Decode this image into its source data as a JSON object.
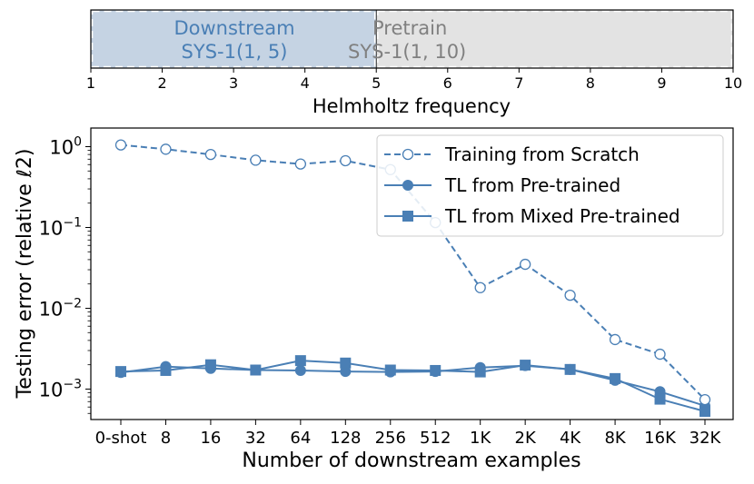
{
  "chart_data": [
    {
      "type": "range_bar",
      "xlabel": "Helmholtz frequency",
      "xlim": [
        1,
        10
      ],
      "xticks": [
        1,
        2,
        3,
        4,
        5,
        6,
        7,
        8,
        9,
        10
      ],
      "bands": [
        {
          "name": "Downstream",
          "sublabel": "SYS-1(1, 5)",
          "range": [
            1,
            5
          ],
          "fill": "#c5d3e3",
          "text_color": "#4a7fb5"
        },
        {
          "name": "Pretrain",
          "sublabel": "SYS-1(1, 10)",
          "range": [
            5,
            10
          ],
          "fill": "#e3e3e3",
          "text_color": "#808080"
        }
      ]
    },
    {
      "type": "line",
      "yscale": "log",
      "ylim": [
        0.00042,
        1.7
      ],
      "xlabel": "Number of downstream examples",
      "ylabel": "Testing error (relative ℓ2)",
      "categories": [
        "0-shot",
        "8",
        "16",
        "32",
        "64",
        "128",
        "256",
        "512",
        "1K",
        "2K",
        "4K",
        "8K",
        "16K",
        "32K"
      ],
      "yticks": [
        {
          "value": 1,
          "base": "10",
          "exp": "0"
        },
        {
          "value": 0.1,
          "base": "10",
          "exp": "−1"
        },
        {
          "value": 0.01,
          "base": "10",
          "exp": "−2"
        },
        {
          "value": 0.001,
          "base": "10",
          "exp": "−3"
        }
      ],
      "legend_position": "top-right",
      "series": [
        {
          "name": "Training from Scratch",
          "marker": "open-circle",
          "dash": "dashed",
          "color": "#4a7fb5",
          "values": [
            1.05,
            0.93,
            0.8,
            0.68,
            0.61,
            0.67,
            0.52,
            0.115,
            0.018,
            0.035,
            0.0145,
            0.0041,
            0.0027,
            0.00074
          ]
        },
        {
          "name": "TL from Pre-trained",
          "marker": "filled-circle",
          "dash": "solid",
          "color": "#4a7fb5",
          "values": [
            0.0016,
            0.0019,
            0.0018,
            0.00172,
            0.0017,
            0.00165,
            0.00163,
            0.00165,
            0.00185,
            0.00195,
            0.00175,
            0.00128,
            0.00093,
            0.00062
          ]
        },
        {
          "name": "TL from Mixed Pre-trained",
          "marker": "filled-square",
          "dash": "solid",
          "color": "#4a7fb5",
          "values": [
            0.00165,
            0.0017,
            0.002,
            0.00172,
            0.00225,
            0.0021,
            0.00172,
            0.0017,
            0.00163,
            0.00198,
            0.00175,
            0.00135,
            0.00075,
            0.00053
          ]
        }
      ]
    }
  ]
}
